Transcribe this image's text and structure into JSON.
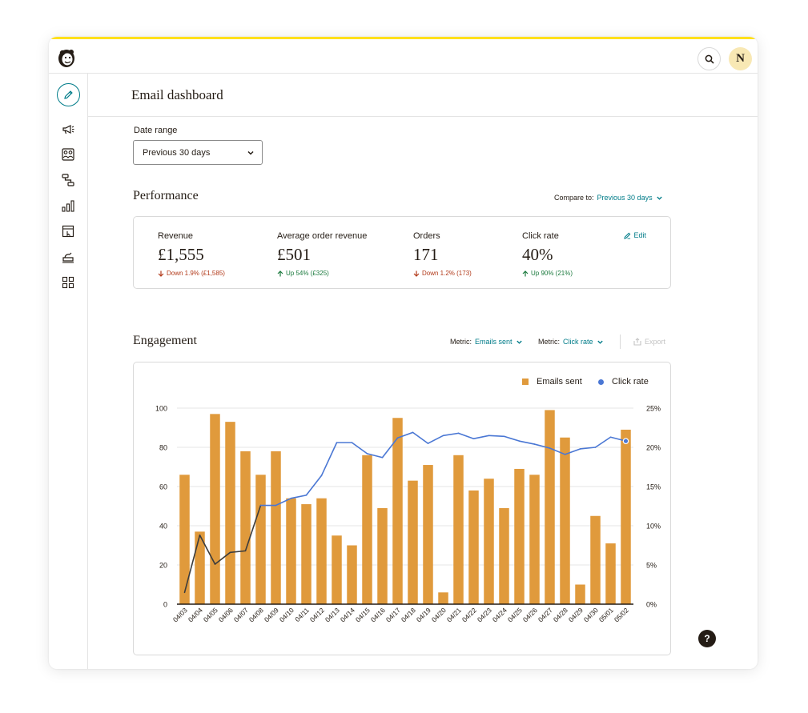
{
  "page": {
    "title": "Email dashboard"
  },
  "topbar": {
    "avatar_initial": "N",
    "search_icon": "search-icon",
    "logo_icon": "mailchimp-logo-icon"
  },
  "sidebar": {
    "items": [
      {
        "name": "create",
        "icon": "pencil-icon"
      },
      {
        "name": "campaigns",
        "icon": "megaphone-icon"
      },
      {
        "name": "audience",
        "icon": "audience-icon"
      },
      {
        "name": "automations",
        "icon": "automations-icon"
      },
      {
        "name": "analytics",
        "icon": "bar-chart-icon"
      },
      {
        "name": "website",
        "icon": "website-icon"
      },
      {
        "name": "content",
        "icon": "content-studio-icon"
      },
      {
        "name": "integrations",
        "icon": "grid-icon"
      }
    ]
  },
  "date_range": {
    "label": "Date range",
    "value": "Previous 30 days"
  },
  "performance": {
    "title": "Performance",
    "compare_label": "Compare to:",
    "compare_value": "Previous 30 days",
    "edit_label": "Edit",
    "metrics": [
      {
        "label": "Revenue",
        "value": "£1,555",
        "delta": "Down 1.9% (£1,585)",
        "direction": "down"
      },
      {
        "label": "Average order revenue",
        "value": "£501",
        "delta": "Up 54% (£325)",
        "direction": "up"
      },
      {
        "label": "Orders",
        "value": "171",
        "delta": "Down 1.2% (173)",
        "direction": "down"
      },
      {
        "label": "Click rate",
        "value": "40%",
        "delta": "Up 90% (21%)",
        "direction": "up"
      }
    ]
  },
  "engagement": {
    "title": "Engagement",
    "metric1_label": "Metric:",
    "metric1_value": "Emails sent",
    "metric2_label": "Metric:",
    "metric2_value": "Click rate",
    "export_label": "Export"
  },
  "chart_data": {
    "type": "bar",
    "categories": [
      "04/03",
      "04/04",
      "04/05",
      "04/06",
      "04/07",
      "04/08",
      "04/09",
      "04/10",
      "04/11",
      "04/12",
      "04/13",
      "04/14",
      "04/15",
      "04/16",
      "04/17",
      "04/18",
      "04/19",
      "04/20",
      "04/21",
      "04/22",
      "04/23",
      "04/24",
      "04/25",
      "04/26",
      "04/27",
      "04/28",
      "04/29",
      "04/30",
      "05/01",
      "05/02"
    ],
    "series": [
      {
        "name": "Emails sent",
        "type": "bar",
        "axis": "left",
        "color": "#e09a3c",
        "values": [
          66,
          37,
          97,
          93,
          78,
          66,
          78,
          54,
          51,
          54,
          35,
          30,
          76,
          49,
          95,
          63,
          71,
          6,
          76,
          58,
          64,
          49,
          69,
          66,
          99,
          85,
          10,
          45,
          31,
          89
        ]
      },
      {
        "name": "Click rate",
        "type": "line",
        "axis": "right",
        "color": "#4a77d4",
        "values": [
          1.5,
          8.8,
          5.1,
          6.6,
          6.8,
          12.6,
          12.6,
          13.5,
          13.9,
          16.4,
          20.6,
          20.6,
          19.2,
          18.7,
          21.2,
          21.9,
          20.5,
          21.5,
          21.8,
          21.1,
          21.5,
          21.4,
          20.8,
          20.4,
          19.9,
          19.1,
          19.8,
          20.0,
          21.3,
          20.8
        ]
      }
    ],
    "y_left": {
      "min": 0,
      "max": 100,
      "ticks": [
        "0",
        "20",
        "40",
        "60",
        "80",
        "100"
      ]
    },
    "y_right": {
      "min": 0,
      "max": 25,
      "ticks": [
        "0%",
        "5%",
        "10%",
        "15%",
        "20%",
        "25%"
      ]
    },
    "grid": true,
    "legend_position": "top-right"
  }
}
